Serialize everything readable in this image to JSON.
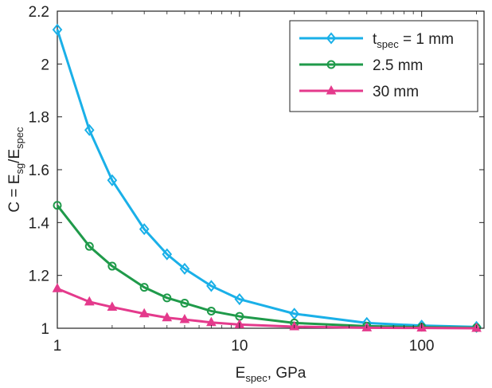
{
  "chart_data": {
    "type": "line",
    "xscale": "log",
    "xlim": [
      1,
      220
    ],
    "ylim": [
      1,
      2.2
    ],
    "grid": false,
    "legend_position": "top-right",
    "x_ticks": [
      1,
      10,
      100
    ],
    "x_tick_labels": [
      "1",
      "10",
      "100"
    ],
    "y_ticks": [
      1,
      1.2,
      1.4,
      1.6,
      1.8,
      2,
      2.2
    ],
    "y_tick_labels": [
      "1",
      "1.2",
      "1.4",
      "1.6",
      "1.8",
      "2",
      "2.2"
    ],
    "xlabel": {
      "main": "E",
      "sub": "spec",
      "rest": ", GPa"
    },
    "ylabel": {
      "p1": "C = E",
      "sub1": "sg",
      "p2": "/E",
      "sub2": "spec"
    },
    "legend_first": {
      "main": "t",
      "sub": "spec",
      "rest": " = 1 mm"
    },
    "series": [
      {
        "name": "t_spec = 1 mm",
        "color": "#1ab0e8",
        "marker": "diamond",
        "x": [
          1,
          1.5,
          2,
          3,
          4,
          5,
          7,
          10,
          20,
          50,
          100,
          200
        ],
        "y": [
          2.13,
          1.75,
          1.56,
          1.375,
          1.28,
          1.225,
          1.16,
          1.11,
          1.055,
          1.02,
          1.01,
          1.005
        ]
      },
      {
        "name": "2.5 mm",
        "color": "#1f9a4a",
        "marker": "circle",
        "x": [
          1,
          1.5,
          2,
          3,
          4,
          5,
          7,
          10,
          20,
          50,
          100,
          200
        ],
        "y": [
          1.465,
          1.31,
          1.235,
          1.155,
          1.115,
          1.095,
          1.065,
          1.045,
          1.02,
          1.008,
          1.004,
          1.002
        ]
      },
      {
        "name": "30 mm",
        "color": "#e43a8c",
        "marker": "triangle",
        "x": [
          1,
          1.5,
          2,
          3,
          4,
          5,
          7,
          10,
          20,
          50,
          100,
          200
        ],
        "y": [
          1.15,
          1.1,
          1.08,
          1.055,
          1.04,
          1.033,
          1.022,
          1.014,
          1.006,
          1.002,
          1.001,
          1.0
        ]
      }
    ]
  },
  "legend": {
    "entries": [
      "t_spec = 1 mm",
      "2.5 mm",
      "30 mm"
    ]
  }
}
